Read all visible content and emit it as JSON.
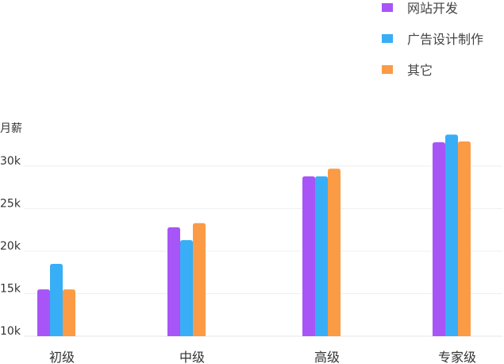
{
  "chart_data": {
    "type": "bar",
    "title": "",
    "xlabel": "",
    "ylabel": "月薪",
    "categories": [
      "初级",
      "中级",
      "高级",
      "专家级"
    ],
    "series": [
      {
        "name": "网站开发",
        "color": "#a855f7",
        "values": [
          15.5,
          22.8,
          28.8,
          32.8
        ]
      },
      {
        "name": "广告设计制作",
        "color": "#38aef6",
        "values": [
          18.5,
          21.3,
          28.8,
          33.7
        ]
      },
      {
        "name": "其它",
        "color": "#fb9b45",
        "values": [
          15.5,
          23.3,
          29.7,
          32.9
        ]
      }
    ],
    "y_ticks": [
      {
        "value": 10,
        "label": "10k"
      },
      {
        "value": 15,
        "label": "15k"
      },
      {
        "value": 20,
        "label": "20k"
      },
      {
        "value": 25,
        "label": "25k"
      },
      {
        "value": 30,
        "label": "30k"
      }
    ],
    "ylim": [
      10,
      33.7
    ],
    "grid": true,
    "legend_position": "top-right"
  }
}
